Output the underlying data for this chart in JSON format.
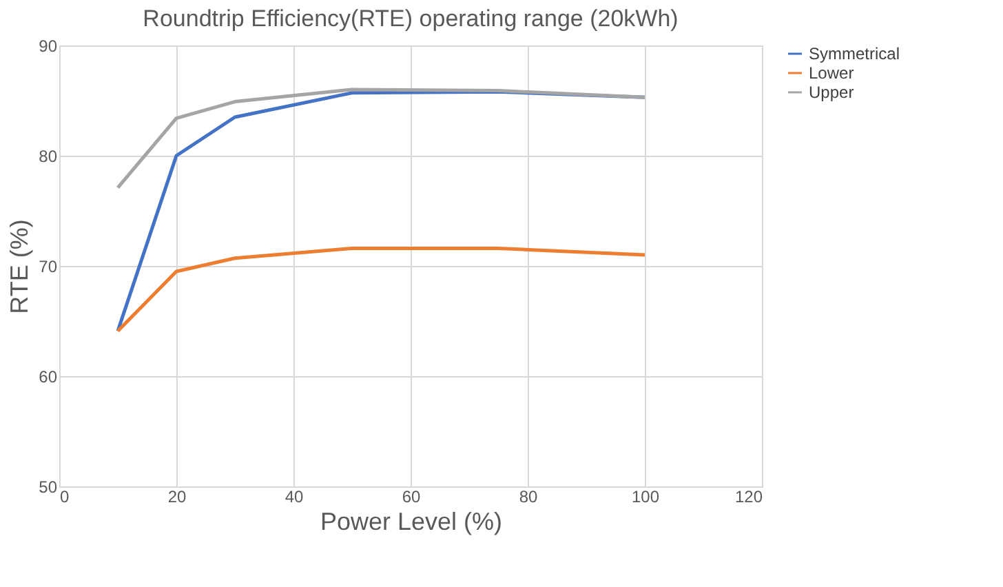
{
  "chart_data": {
    "type": "line",
    "title": "Roundtrip Efficiency(RTE) operating range (20kWh)",
    "xlabel": "Power Level (%)",
    "ylabel": "RTE  (%)",
    "x": [
      10,
      20,
      30,
      50,
      75,
      100
    ],
    "series": [
      {
        "name": "Symmetrical",
        "color": "#4472c4",
        "values": [
          64.1,
          80.0,
          83.5,
          85.7,
          85.8,
          85.3
        ]
      },
      {
        "name": "Lower",
        "color": "#ed7d31",
        "values": [
          64.1,
          69.5,
          70.7,
          71.6,
          71.6,
          71.0
        ]
      },
      {
        "name": "Upper",
        "color": "#a5a5a5",
        "values": [
          77.1,
          83.4,
          84.9,
          86.0,
          85.9,
          85.3
        ]
      }
    ],
    "xlim": [
      0,
      120
    ],
    "xticks": [
      0,
      20,
      40,
      60,
      80,
      100,
      120
    ],
    "ylim": [
      50,
      90
    ],
    "yticks": [
      50,
      60,
      70,
      80,
      90
    ],
    "grid": true,
    "legend": "right",
    "marker": "none",
    "line_style": "solid"
  }
}
